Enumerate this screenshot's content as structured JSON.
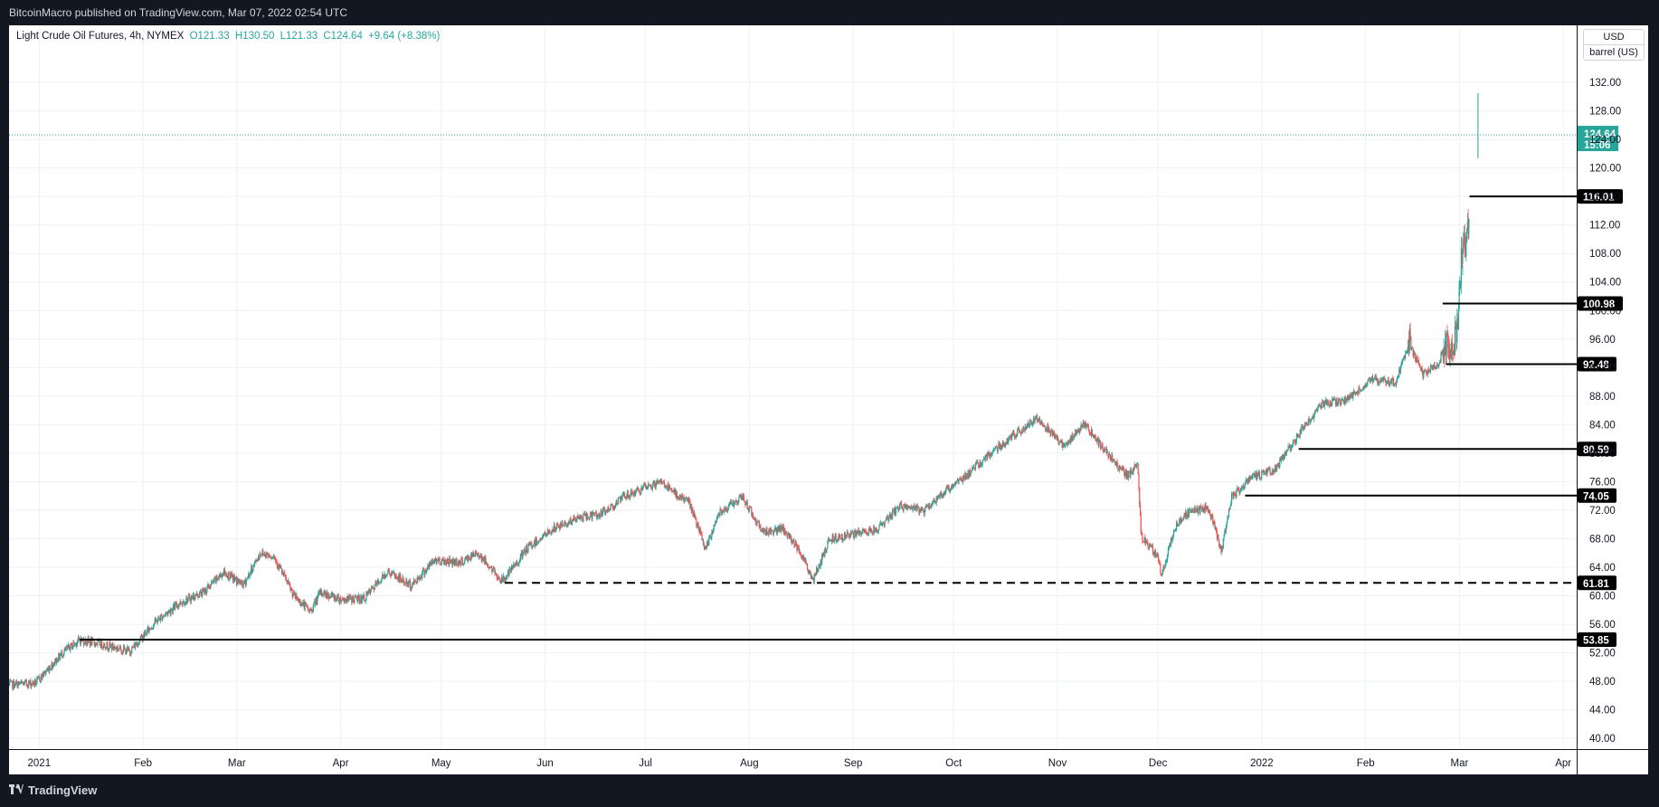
{
  "header": {
    "published": "BitcoinMacro published on TradingView.com, Mar 07, 2022 02:54 UTC"
  },
  "legend": {
    "symbol": "Light Crude Oil Futures, 4h, NYMEX",
    "open": "O121.33",
    "high": "H130.50",
    "low": "L121.33",
    "close": "C124.64",
    "change": "+9.64 (+8.38%)"
  },
  "currency": {
    "code": "USD",
    "unit": "barrel (US)"
  },
  "last_price": {
    "price": "124.64",
    "countdown": "15:06"
  },
  "footer": {
    "brand": "TradingView"
  },
  "colors": {
    "up": "#26a69a",
    "down": "#ef5350",
    "background": "#131722",
    "level": "#000000"
  },
  "chart_data": {
    "type": "candlestick",
    "symbol": "Light Crude Oil Futures",
    "interval": "4h",
    "exchange": "NYMEX",
    "ylim": [
      38.5,
      140
    ],
    "y_ticks": [
      "132.00",
      "128.00",
      "124.00",
      "120.00",
      "116.00",
      "112.00",
      "108.00",
      "104.00",
      "100.00",
      "96.00",
      "92.00",
      "88.00",
      "84.00",
      "80.00",
      "76.00",
      "72.00",
      "68.00",
      "64.00",
      "60.00",
      "56.00",
      "52.00",
      "48.00",
      "44.00",
      "40.00"
    ],
    "x_ticks": [
      "2021",
      "Feb",
      "Mar",
      "Apr",
      "May",
      "Jun",
      "Jul",
      "Aug",
      "Sep",
      "Oct",
      "Nov",
      "Dec",
      "2022",
      "Feb",
      "Mar",
      "Apr"
    ],
    "grid": true,
    "price_path": [
      [
        "2020-12-23",
        47.5
      ],
      [
        "2020-12-31",
        47.8
      ],
      [
        "2021-01-08",
        52.0
      ],
      [
        "2021-01-13",
        53.8
      ],
      [
        "2021-01-20",
        53.2
      ],
      [
        "2021-01-28",
        52.2
      ],
      [
        "2021-02-05",
        56.5
      ],
      [
        "2021-02-12",
        59.0
      ],
      [
        "2021-02-19",
        60.5
      ],
      [
        "2021-02-25",
        63.3
      ],
      [
        "2021-03-03",
        61.5
      ],
      [
        "2021-03-08",
        66.0
      ],
      [
        "2021-03-12",
        65.6
      ],
      [
        "2021-03-18",
        60.0
      ],
      [
        "2021-03-23",
        57.8
      ],
      [
        "2021-03-26",
        60.5
      ],
      [
        "2021-04-01",
        59.5
      ],
      [
        "2021-04-08",
        59.6
      ],
      [
        "2021-04-15",
        63.4
      ],
      [
        "2021-04-22",
        61.4
      ],
      [
        "2021-04-29",
        65.0
      ],
      [
        "2021-05-07",
        64.7
      ],
      [
        "2021-05-12",
        66.0
      ],
      [
        "2021-05-19",
        62.1
      ],
      [
        "2021-05-21",
        63.0
      ],
      [
        "2021-05-27",
        66.8
      ],
      [
        "2021-06-04",
        69.5
      ],
      [
        "2021-06-11",
        70.9
      ],
      [
        "2021-06-18",
        71.5
      ],
      [
        "2021-06-25",
        74.0
      ],
      [
        "2021-07-02",
        75.3
      ],
      [
        "2021-07-06",
        76.0
      ],
      [
        "2021-07-09",
        74.5
      ],
      [
        "2021-07-14",
        73.2
      ],
      [
        "2021-07-19",
        66.4
      ],
      [
        "2021-07-23",
        71.8
      ],
      [
        "2021-07-30",
        73.8
      ],
      [
        "2021-08-05",
        69.0
      ],
      [
        "2021-08-11",
        69.3
      ],
      [
        "2021-08-16",
        66.5
      ],
      [
        "2021-08-20",
        62.1
      ],
      [
        "2021-08-25",
        68.0
      ],
      [
        "2021-09-01",
        68.6
      ],
      [
        "2021-09-08",
        69.3
      ],
      [
        "2021-09-15",
        72.6
      ],
      [
        "2021-09-22",
        71.9
      ],
      [
        "2021-09-29",
        74.9
      ],
      [
        "2021-10-06",
        77.4
      ],
      [
        "2021-10-13",
        80.4
      ],
      [
        "2021-10-20",
        82.8
      ],
      [
        "2021-10-26",
        85.0
      ],
      [
        "2021-10-29",
        83.6
      ],
      [
        "2021-11-03",
        80.9
      ],
      [
        "2021-11-09",
        84.2
      ],
      [
        "2021-11-15",
        80.4
      ],
      [
        "2021-11-22",
        76.8
      ],
      [
        "2021-11-25",
        78.5
      ],
      [
        "2021-11-26",
        68.2
      ],
      [
        "2021-12-01",
        65.6
      ],
      [
        "2021-12-02",
        62.8
      ],
      [
        "2021-12-06",
        69.5
      ],
      [
        "2021-12-10",
        71.7
      ],
      [
        "2021-12-16",
        72.4
      ],
      [
        "2021-12-20",
        66.4
      ],
      [
        "2021-12-23",
        73.8
      ],
      [
        "2021-12-29",
        76.6
      ],
      [
        "2022-01-05",
        77.8
      ],
      [
        "2022-01-12",
        82.6
      ],
      [
        "2022-01-19",
        86.9
      ],
      [
        "2022-01-26",
        87.4
      ],
      [
        "2022-02-03",
        90.3
      ],
      [
        "2022-02-10",
        89.9
      ],
      [
        "2022-02-14",
        95.5
      ],
      [
        "2022-02-18",
        91.1
      ],
      [
        "2022-02-23",
        92.3
      ],
      [
        "2022-02-24",
        95.0
      ],
      [
        "2022-02-28",
        95.7
      ],
      [
        "2022-03-02",
        110.6
      ],
      [
        "2022-03-03",
        107.7
      ],
      [
        "2022-03-04",
        115.7
      ]
    ],
    "last_candle": {
      "open": 121.33,
      "high": 130.5,
      "low": 121.33,
      "close": 124.64
    },
    "levels": [
      {
        "price": 116.01,
        "label": "116.01",
        "from": "2022-03-04",
        "style": "solid"
      },
      {
        "price": 100.98,
        "label": "100.98",
        "from": "2022-02-24",
        "style": "solid"
      },
      {
        "price": 92.48,
        "label": "92.48",
        "from": "2022-02-25",
        "style": "solid"
      },
      {
        "price": 80.59,
        "label": "80.59",
        "from": "2022-01-12",
        "style": "solid"
      },
      {
        "price": 74.05,
        "label": "74.05",
        "from": "2021-12-27",
        "style": "solid"
      },
      {
        "price": 61.81,
        "label": "61.81",
        "from": "2021-05-20",
        "style": "dashed"
      },
      {
        "price": 53.85,
        "label": "53.85",
        "from": "2021-01-13",
        "style": "solid"
      }
    ]
  }
}
